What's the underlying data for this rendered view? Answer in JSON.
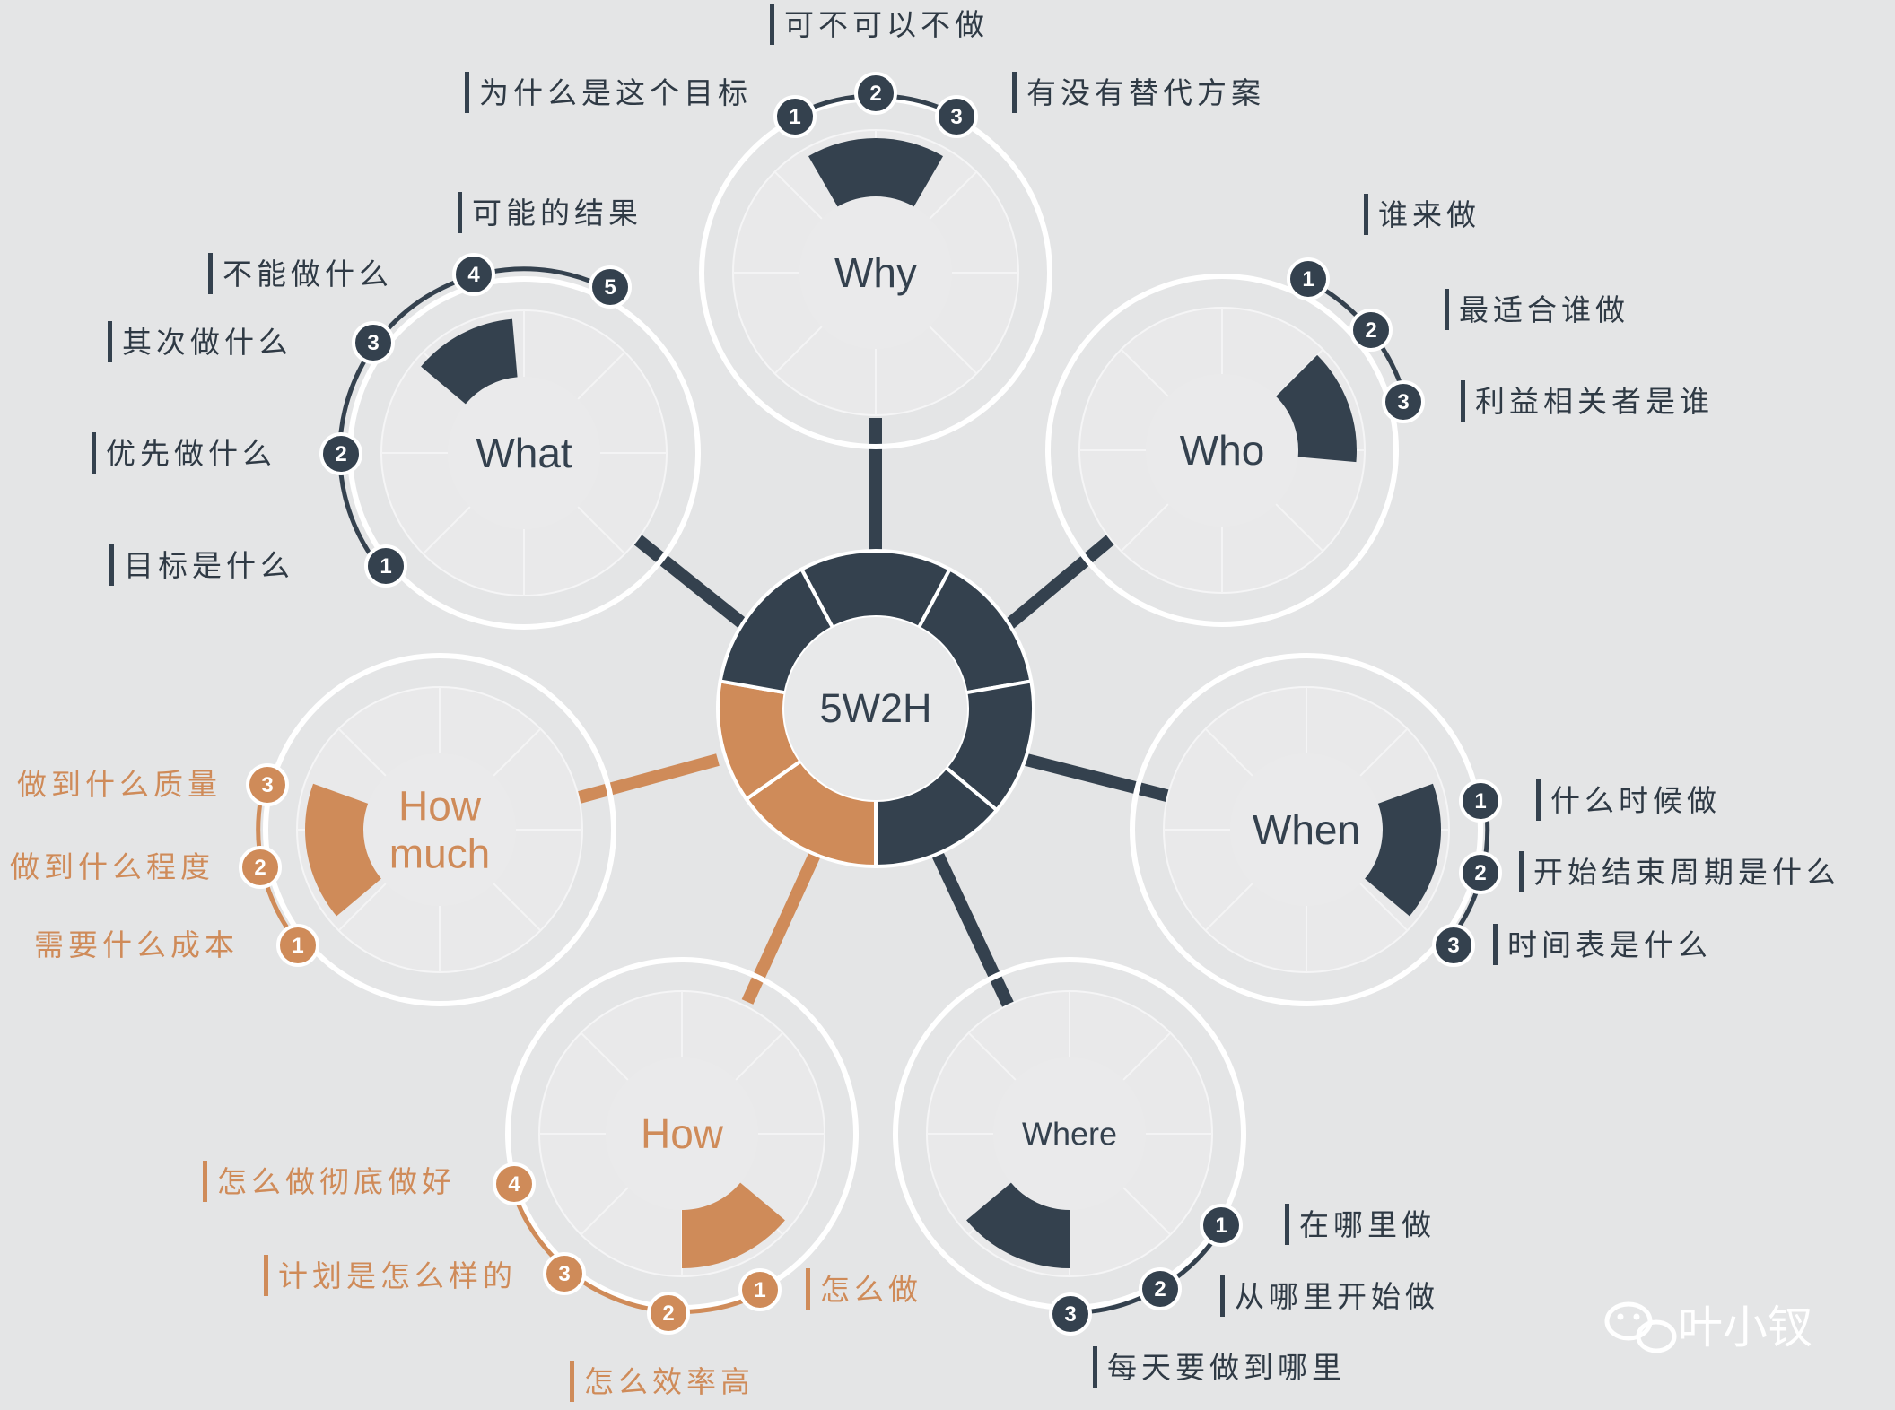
{
  "colors": {
    "dark": "#34414e",
    "orange": "#cf8b59",
    "background": "#e4e5e6"
  },
  "center": {
    "label": "5W2H"
  },
  "hubs": [
    {
      "id": "why",
      "lines": [
        "Why"
      ],
      "color": "dark",
      "items": [
        {
          "num": "1",
          "label": "为什么是这个目标"
        },
        {
          "num": "2",
          "label": "可不可以不做"
        },
        {
          "num": "3",
          "label": "有没有替代方案"
        }
      ]
    },
    {
      "id": "who",
      "lines": [
        "Who"
      ],
      "color": "dark",
      "items": [
        {
          "num": "1",
          "label": "谁来做"
        },
        {
          "num": "2",
          "label": "最适合谁做"
        },
        {
          "num": "3",
          "label": "利益相关者是谁"
        }
      ]
    },
    {
      "id": "when",
      "lines": [
        "When"
      ],
      "color": "dark",
      "items": [
        {
          "num": "1",
          "label": "什么时候做"
        },
        {
          "num": "2",
          "label": "开始结束周期是什么"
        },
        {
          "num": "3",
          "label": "时间表是什么"
        }
      ]
    },
    {
      "id": "where",
      "lines": [
        "Where"
      ],
      "color": "dark",
      "items": [
        {
          "num": "1",
          "label": "在哪里做"
        },
        {
          "num": "2",
          "label": "从哪里开始做"
        },
        {
          "num": "3",
          "label": "每天要做到哪里"
        }
      ]
    },
    {
      "id": "how",
      "lines": [
        "How"
      ],
      "color": "orange",
      "items": [
        {
          "num": "1",
          "label": "怎么做"
        },
        {
          "num": "2",
          "label": "怎么效率高"
        },
        {
          "num": "3",
          "label": "计划是怎么样的"
        },
        {
          "num": "4",
          "label": "怎么做彻底做好"
        }
      ]
    },
    {
      "id": "howmuch",
      "lines": [
        "How",
        "much"
      ],
      "color": "orange",
      "items": [
        {
          "num": "1",
          "label": "需要什么成本"
        },
        {
          "num": "2",
          "label": "做到什么程度"
        },
        {
          "num": "3",
          "label": "做到什么质量"
        }
      ]
    },
    {
      "id": "what",
      "lines": [
        "What"
      ],
      "color": "dark",
      "items": [
        {
          "num": "1",
          "label": "目标是什么"
        },
        {
          "num": "2",
          "label": "优先做什么"
        },
        {
          "num": "3",
          "label": "其次做什么"
        },
        {
          "num": "4",
          "label": "不能做什么"
        },
        {
          "num": "5",
          "label": "可能的结果"
        }
      ]
    }
  ],
  "watermark": {
    "icon": "wechat-icon",
    "text": "叶小钗"
  }
}
